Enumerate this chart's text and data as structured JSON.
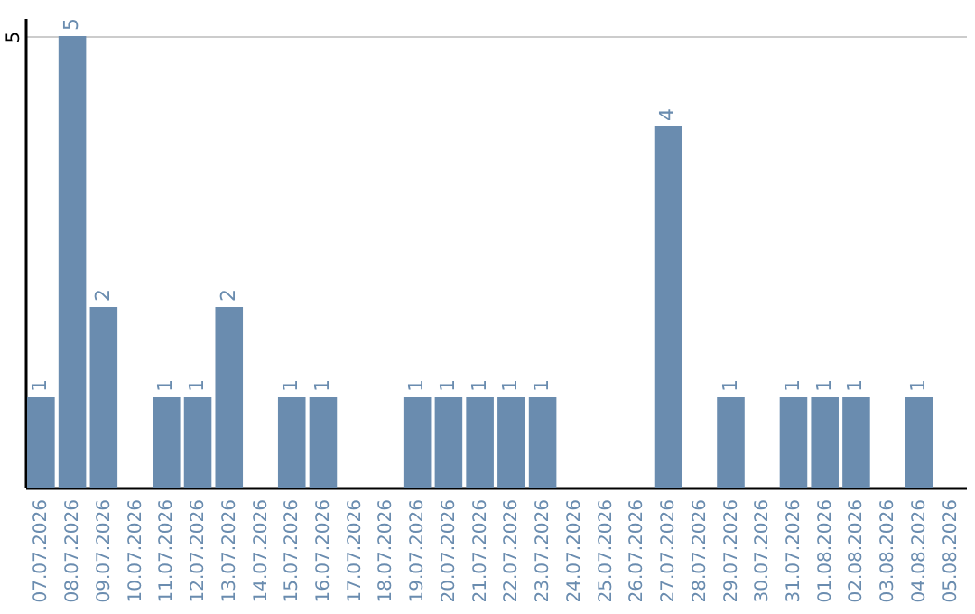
{
  "chart_data": {
    "type": "bar",
    "categories": [
      "07.07.2026",
      "08.07.2026",
      "09.07.2026",
      "10.07.2026",
      "11.07.2026",
      "12.07.2026",
      "13.07.2026",
      "14.07.2026",
      "15.07.2026",
      "16.07.2026",
      "17.07.2026",
      "18.07.2026",
      "19.07.2026",
      "20.07.2026",
      "21.07.2026",
      "22.07.2026",
      "23.07.2026",
      "24.07.2026",
      "25.07.2026",
      "26.07.2026",
      "27.07.2026",
      "28.07.2026",
      "29.07.2026",
      "30.07.2026",
      "31.07.2026",
      "01.08.2026",
      "02.08.2026",
      "03.08.2026",
      "04.08.2026",
      "05.08.2026"
    ],
    "values": [
      1,
      5,
      2,
      null,
      1,
      1,
      2,
      null,
      1,
      1,
      null,
      null,
      1,
      1,
      1,
      1,
      1,
      null,
      null,
      null,
      4,
      null,
      1,
      null,
      1,
      1,
      1,
      null,
      1,
      null
    ],
    "color": "#6a8caf",
    "ylim": [
      0,
      5.2
    ],
    "yticks": [
      5
    ],
    "grid": "y",
    "data_labels": true
  }
}
